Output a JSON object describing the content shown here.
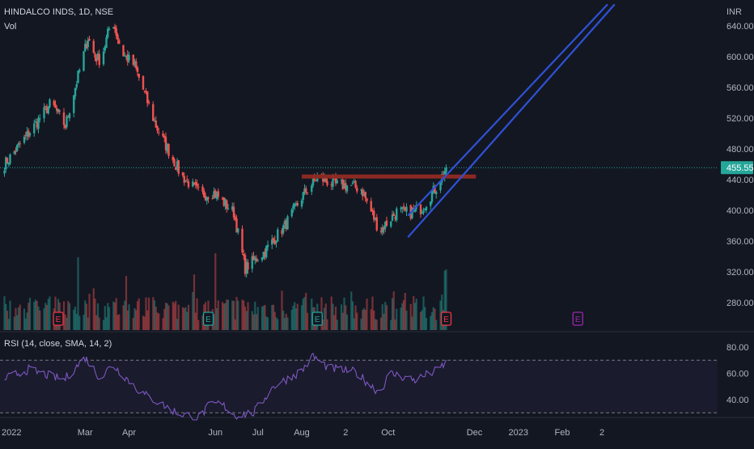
{
  "header": {
    "symbol_line": "HINDALCO INDS, 1D, NSE",
    "volume_label": "Vol",
    "rsi_label": "RSI (14, close, SMA, 14, 2)"
  },
  "price_axis": {
    "currency": "INR",
    "ticks": [
      "640.00",
      "600.00",
      "560.00",
      "520.00",
      "480.00",
      "440.00",
      "400.00",
      "360.00",
      "320.00",
      "280.00"
    ],
    "last_price": "455.55",
    "last_price_color": "#26a69a"
  },
  "rsi_axis": {
    "ticks": [
      "80.00",
      "60.00",
      "40.00"
    ],
    "upper_band": 70,
    "lower_band": 30
  },
  "time_axis": {
    "labels": [
      "2022",
      "Mar",
      "Apr",
      "Jun",
      "Jul",
      "Aug",
      "2",
      "Oct",
      "Dec",
      "2023",
      "Feb",
      "2"
    ]
  },
  "earnings_markers": [
    {
      "label": "E",
      "color": "#f23645"
    },
    {
      "label": "E",
      "color": "#26a69a"
    },
    {
      "label": "E",
      "color": "#26a69a"
    },
    {
      "label": "E",
      "color": "#f23645"
    },
    {
      "label": "E",
      "color": "#9c27b0"
    }
  ],
  "colors": {
    "up": "#26a69a",
    "down": "#ef5350",
    "channel": "#2f52d6",
    "resistance": "#8b2a22",
    "rsi_line": "#7e57c2",
    "background": "#131722"
  },
  "chart_data": {
    "type": "candlestick",
    "title": "HINDALCO INDS, 1D, NSE",
    "ylim": [
      255,
      660
    ],
    "price_waypoints": [
      {
        "date": "2022-01-01",
        "close": 455
      },
      {
        "date": "2022-01-20",
        "close": 500
      },
      {
        "date": "2022-02-05",
        "close": 540
      },
      {
        "date": "2022-02-15",
        "close": 510
      },
      {
        "date": "2022-03-03",
        "close": 625
      },
      {
        "date": "2022-03-08",
        "close": 600
      },
      {
        "date": "2022-03-12",
        "close": 595
      },
      {
        "date": "2022-03-20",
        "close": 650
      },
      {
        "date": "2022-03-27",
        "close": 605
      },
      {
        "date": "2022-04-05",
        "close": 588
      },
      {
        "date": "2022-04-20",
        "close": 510
      },
      {
        "date": "2022-05-08",
        "close": 445
      },
      {
        "date": "2022-05-22",
        "close": 420
      },
      {
        "date": "2022-05-31",
        "close": 423
      },
      {
        "date": "2022-06-14",
        "close": 397
      },
      {
        "date": "2022-06-22",
        "close": 325
      },
      {
        "date": "2022-07-05",
        "close": 345
      },
      {
        "date": "2022-07-20",
        "close": 380
      },
      {
        "date": "2022-08-02",
        "close": 420
      },
      {
        "date": "2022-08-12",
        "close": 443
      },
      {
        "date": "2022-08-25",
        "close": 433
      },
      {
        "date": "2022-09-05",
        "close": 432
      },
      {
        "date": "2022-09-12",
        "close": 428
      },
      {
        "date": "2022-09-25",
        "close": 373
      },
      {
        "date": "2022-10-07",
        "close": 398
      },
      {
        "date": "2022-10-17",
        "close": 397
      },
      {
        "date": "2022-10-25",
        "close": 403
      },
      {
        "date": "2022-11-04",
        "close": 430
      },
      {
        "date": "2022-11-11",
        "close": 455.55
      }
    ],
    "resistance_level": 444,
    "channel": {
      "upper": [
        {
          "date": "2022-10-15",
          "price": 393
        },
        {
          "date": "2023-03-05",
          "price": 668
        }
      ],
      "lower": [
        {
          "date": "2022-10-15",
          "price": 365
        },
        {
          "date": "2023-03-10",
          "price": 668
        }
      ]
    },
    "volume": {
      "peaks": [
        {
          "date": "2022-02-24"
        },
        {
          "date": "2022-06-01"
        },
        {
          "date": "2022-11-11"
        }
      ]
    },
    "rsi": {
      "period": 14,
      "waypoints": [
        {
          "date": "2022-01-01",
          "value": 55
        },
        {
          "date": "2022-01-20",
          "value": 63
        },
        {
          "date": "2022-02-14",
          "value": 55
        },
        {
          "date": "2022-03-01",
          "value": 72
        },
        {
          "date": "2022-03-12",
          "value": 56
        },
        {
          "date": "2022-03-20",
          "value": 67
        },
        {
          "date": "2022-04-10",
          "value": 45
        },
        {
          "date": "2022-05-05",
          "value": 30
        },
        {
          "date": "2022-05-20",
          "value": 26
        },
        {
          "date": "2022-05-28",
          "value": 36
        },
        {
          "date": "2022-06-05",
          "value": 37
        },
        {
          "date": "2022-06-15",
          "value": 28
        },
        {
          "date": "2022-06-28",
          "value": 30
        },
        {
          "date": "2022-07-12",
          "value": 50
        },
        {
          "date": "2022-08-01",
          "value": 62
        },
        {
          "date": "2022-08-09",
          "value": 73
        },
        {
          "date": "2022-08-20",
          "value": 64
        },
        {
          "date": "2022-09-08",
          "value": 61
        },
        {
          "date": "2022-09-25",
          "value": 45
        },
        {
          "date": "2022-10-02",
          "value": 60
        },
        {
          "date": "2022-10-20",
          "value": 55
        },
        {
          "date": "2022-11-04",
          "value": 62
        },
        {
          "date": "2022-11-11",
          "value": 68
        }
      ]
    }
  }
}
